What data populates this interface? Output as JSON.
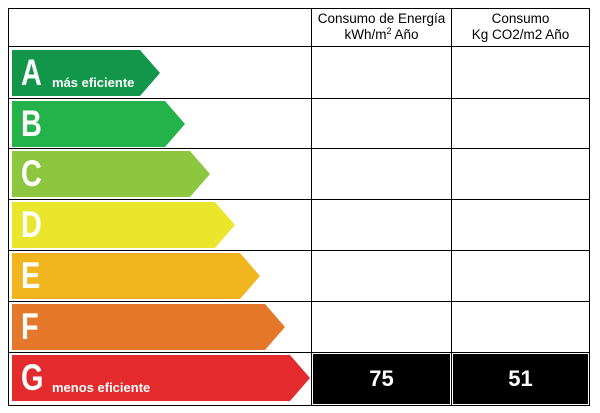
{
  "header": {
    "col1_line1": "Consumo de Energía",
    "col1_line2": "kWh/m",
    "col1_sup": "2",
    "col1_line2_tail": " Año",
    "col2_line1": "Consumo",
    "col2_line2": "Kg CO2/m2 Año"
  },
  "rating": {
    "selected": "G",
    "energy_value": "75",
    "co2_value": "51"
  },
  "chart_data": {
    "type": "table",
    "categories": [
      "A",
      "B",
      "C",
      "D",
      "E",
      "F",
      "G"
    ],
    "labels": {
      "A": "más eficiente",
      "G": "menos eficiente"
    },
    "colors": [
      "#12964a",
      "#24b24b",
      "#8dc63f",
      "#eae62b",
      "#f0b51f",
      "#e5772b",
      "#e32b2e"
    ],
    "columns": [
      "Consumo de Energía kWh/m2 Año",
      "Consumo Kg CO2/m2 Año"
    ],
    "rows": [
      [
        "A",
        "",
        ""
      ],
      [
        "B",
        "",
        ""
      ],
      [
        "C",
        "",
        ""
      ],
      [
        "D",
        "",
        ""
      ],
      [
        "E",
        "",
        ""
      ],
      [
        "F",
        "",
        ""
      ],
      [
        "G",
        "75",
        "51"
      ]
    ]
  }
}
